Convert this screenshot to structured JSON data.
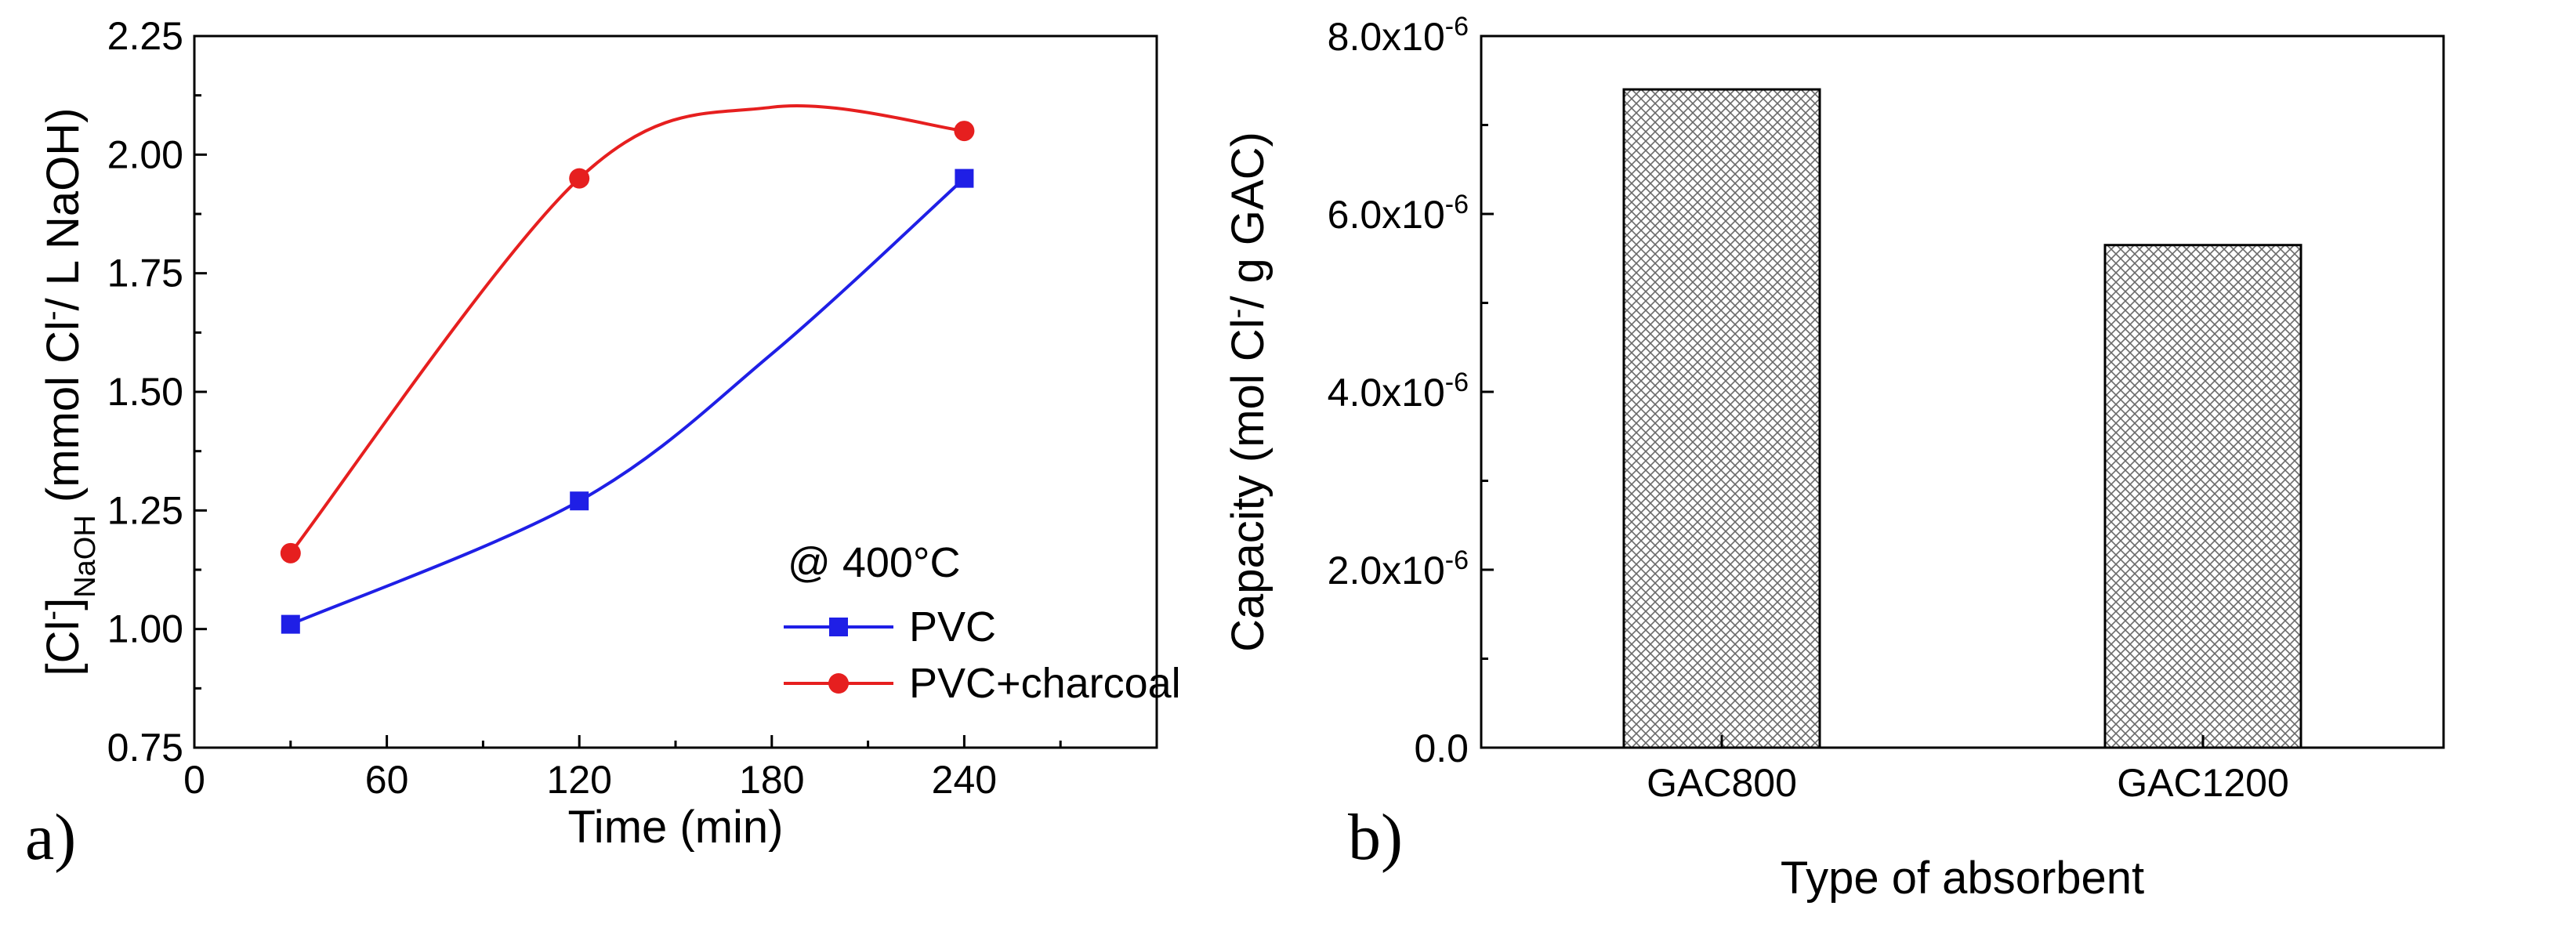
{
  "chart_data": [
    {
      "type": "line",
      "panel_label": "a)",
      "xlabel": "Time  (min)",
      "ylabel_main": "[Cl",
      "ylabel_sup": "-",
      "ylabel_mid": "]",
      "ylabel_sub": "NaOH",
      "ylabel_rest_pre": "  (mmol Cl",
      "ylabel_rest_sup": "-",
      "ylabel_rest_post": "/ L NaOH)",
      "xlim": [
        0,
        300
      ],
      "ylim": [
        0.75,
        2.25
      ],
      "x_ticks": [
        "0",
        "60",
        "120",
        "180",
        "240"
      ],
      "x_tick_values": [
        0,
        60,
        120,
        180,
        240
      ],
      "y_ticks": [
        "0.75",
        "1.00",
        "1.25",
        "1.50",
        "1.75",
        "2.00",
        "2.25"
      ],
      "y_tick_values": [
        0.75,
        1.0,
        1.25,
        1.5,
        1.75,
        2.0,
        2.25
      ],
      "annotation": "@ 400°C",
      "series": [
        {
          "name": "PVC",
          "color": "#1f1fe6",
          "marker": "square",
          "x": [
            30,
            120,
            240
          ],
          "y": [
            1.01,
            1.27,
            1.95
          ]
        },
        {
          "name": "PVC+charcoal",
          "color": "#e61f1f",
          "marker": "circle",
          "x": [
            30,
            120,
            240
          ],
          "y": [
            1.16,
            1.95,
            2.05
          ]
        }
      ]
    },
    {
      "type": "bar",
      "panel_label": "b)",
      "xlabel": "Type of absorbent",
      "ylabel_pre": "Capacity (mol Cl",
      "ylabel_sup": "-",
      "ylabel_post": "/ g GAC)",
      "categories": [
        "GAC800",
        "GAC1200"
      ],
      "values": [
        7.4e-06,
        5.65e-06
      ],
      "ylim": [
        0,
        8e-06
      ],
      "y_tick_values": [
        0,
        2e-06,
        4e-06,
        6e-06,
        8e-06
      ],
      "y_ticks": [
        {
          "base": "0.0",
          "exp": ""
        },
        {
          "base": "2.0x10",
          "exp": "-6"
        },
        {
          "base": "4.0x10",
          "exp": "-6"
        },
        {
          "base": "6.0x10",
          "exp": "-6"
        },
        {
          "base": "8.0x10",
          "exp": "-6"
        }
      ],
      "bar_fill": "crosshatch"
    }
  ]
}
